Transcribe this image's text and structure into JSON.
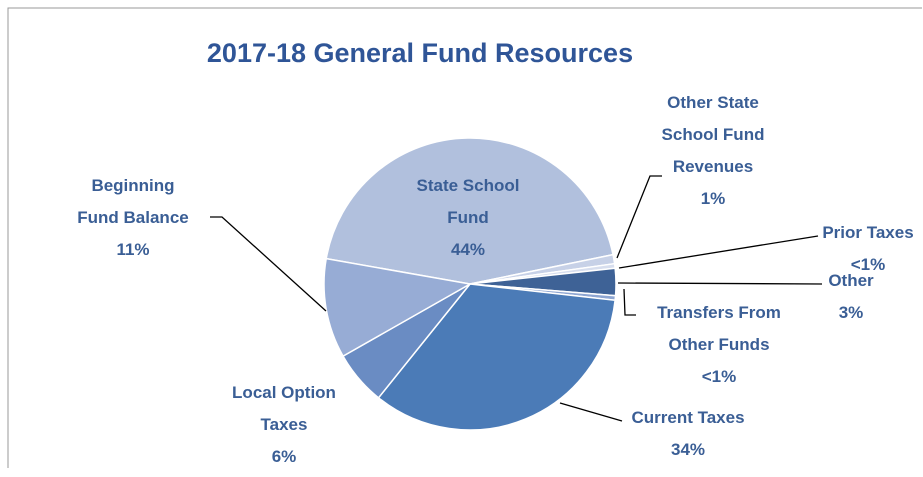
{
  "chart_data": {
    "type": "pie",
    "title": "2017-18 General Fund Resources",
    "categories": [
      "State School Fund",
      "Other State School Fund Revenues",
      "Prior Taxes",
      "Other",
      "Transfers From Other Funds",
      "Current Taxes",
      "Local Option Taxes",
      "Beginning Fund Balance"
    ],
    "values": [
      44,
      1,
      0.5,
      3,
      0.5,
      34,
      6,
      11
    ],
    "value_labels": [
      "44%",
      "1%",
      "<1%",
      "3%",
      "<1%",
      "34%",
      "6%",
      "11%"
    ],
    "colors": [
      "#b1c0dd",
      "#c7d1e7",
      "#d7deee",
      "#3e6296",
      "#8ea6d2",
      "#4b7bb7",
      "#6a8cc3",
      "#97acd5"
    ]
  }
}
